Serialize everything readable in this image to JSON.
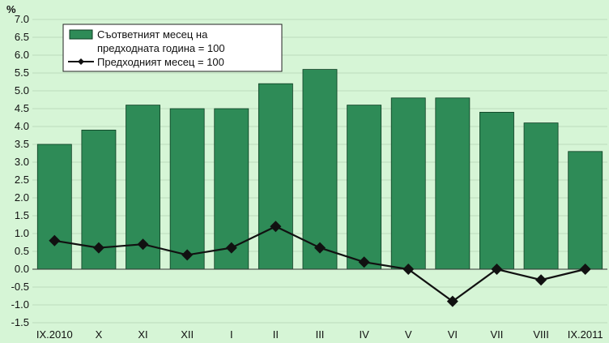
{
  "chart_data": {
    "type": "bar",
    "y_unit": "%",
    "ylim": [
      -1.5,
      7.0
    ],
    "y_ticks": [
      "7.0",
      "6.5",
      "6.0",
      "5.5",
      "5.0",
      "4.5",
      "4.0",
      "3.5",
      "3.0",
      "2.5",
      "2.0",
      "1.5",
      "1.0",
      "0.5",
      "0.0",
      "-0.5",
      "-1.0",
      "-1.5"
    ],
    "categories": [
      "IX.2010",
      "X",
      "XI",
      "XII",
      "I",
      "II",
      "III",
      "IV",
      "V",
      "VI",
      "VII",
      "VIII",
      "IX.2011"
    ],
    "grid": true,
    "legend_position": "top-left",
    "series": [
      {
        "name": "Съответният месец на предходната година = 100",
        "type": "bar",
        "legend_lines": [
          "Съответният месец на",
          "предходната година = 100"
        ],
        "values": [
          3.5,
          3.9,
          4.6,
          4.5,
          4.5,
          5.2,
          5.6,
          4.6,
          4.8,
          4.8,
          4.4,
          4.1,
          3.3
        ]
      },
      {
        "name": "Предходният месец = 100",
        "type": "line",
        "legend_lines": [
          "Предходният месец = 100"
        ],
        "values": [
          0.8,
          0.6,
          0.7,
          0.4,
          0.6,
          1.2,
          0.6,
          0.2,
          0.0,
          -0.9,
          0.0,
          -0.3,
          0.0
        ]
      }
    ],
    "colors": {
      "background": "#d6f5d6",
      "bar_fill": "#2e8b57",
      "bar_stroke": "#0d3d22",
      "line": "#111111",
      "grid": "#bcdcbc"
    }
  }
}
